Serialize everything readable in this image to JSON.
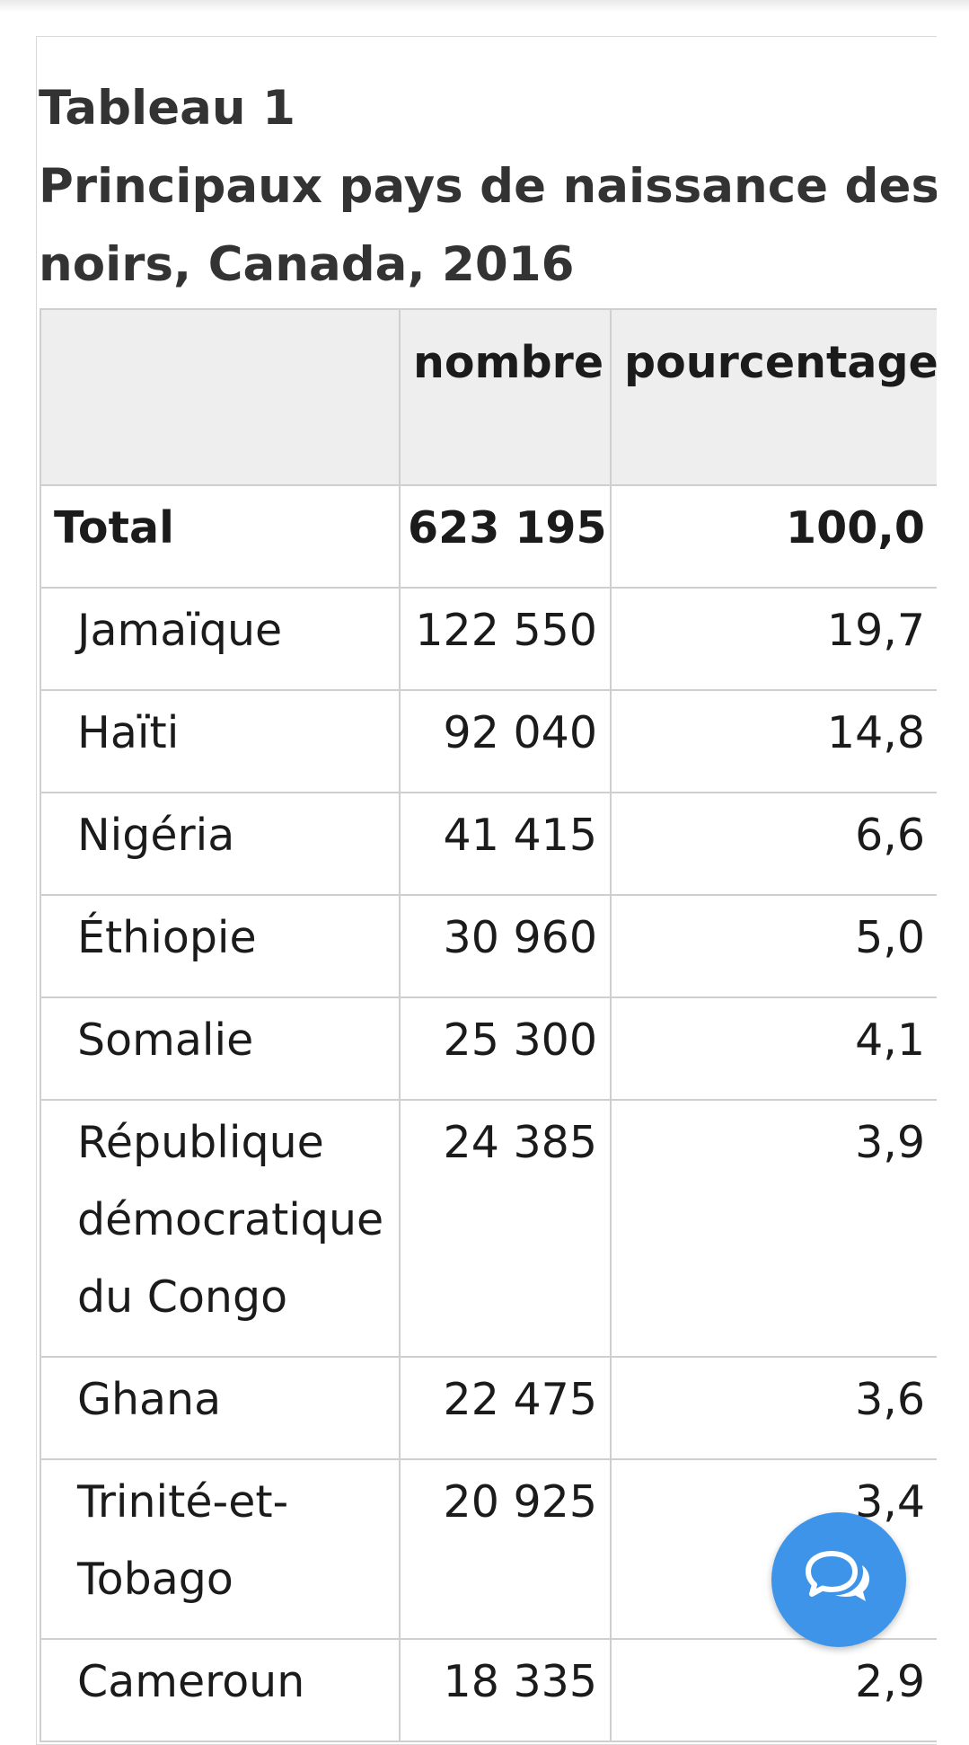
{
  "caption": {
    "line1": "Tableau 1",
    "line2": "Principaux pays de naissance des immigrants",
    "line3": "noirs, Canada, 2016"
  },
  "table": {
    "headers": [
      "",
      "nombre",
      "pourcentage"
    ],
    "rows": [
      {
        "country": "Total",
        "nombre": "623 195",
        "pourcentage": "100,0"
      },
      {
        "country": "Jamaïque",
        "nombre": "122 550",
        "pourcentage": "19,7"
      },
      {
        "country": "Haïti",
        "nombre": "92 040",
        "pourcentage": "14,8"
      },
      {
        "country": "Nigéria",
        "nombre": "41 415",
        "pourcentage": "6,6"
      },
      {
        "country": "Éthiopie",
        "nombre": "30 960",
        "pourcentage": "5,0"
      },
      {
        "country": "Somalie",
        "nombre": "25 300",
        "pourcentage": "4,1"
      },
      {
        "country": "République démocratique du Congo",
        "nombre": "24 385",
        "pourcentage": "3,9"
      },
      {
        "country": "Ghana",
        "nombre": "22 475",
        "pourcentage": "3,6"
      },
      {
        "country": "Trinité-et-Tobago",
        "nombre": "20 925",
        "pourcentage": "3,4"
      },
      {
        "country": "Cameroun",
        "nombre": "18 335",
        "pourcentage": "2,9"
      }
    ]
  },
  "chat_button": {
    "icon": "chat-bubbles-icon",
    "color": "#3d94e8"
  }
}
